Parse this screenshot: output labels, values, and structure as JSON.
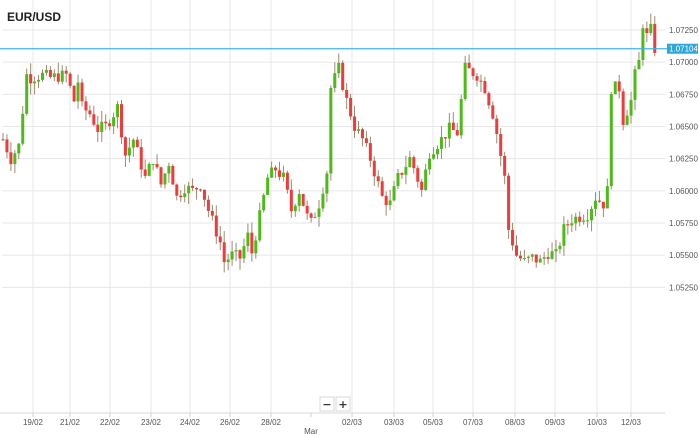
{
  "colors": {
    "up": "#4cbb17",
    "down": "#ef3b3b",
    "wick": "#9d8a6e",
    "grid": "#e7e7e7",
    "price_line": "#3eb4e6",
    "price_label_bg": "#2fa6d9"
  },
  "zoom": {
    "minus_label": "−",
    "plus_label": "+"
  },
  "chart_data": {
    "type": "candlestick",
    "title": "EUR/USD",
    "xlabel": "",
    "ylabel": "",
    "ylim": [
      1.0515,
      1.0745
    ],
    "y_ticks": [
      "1.07250",
      "1.07000",
      "1.06750",
      "1.06500",
      "1.06250",
      "1.06000",
      "1.05750",
      "1.05500",
      "1.05250"
    ],
    "x_ticks": [
      "19/02",
      "21/02",
      "22/02",
      "23/02",
      "24/02",
      "26/02",
      "28/02",
      "Mar",
      "02/03",
      "03/03",
      "05/03",
      "07/03",
      "08/03",
      "09/03",
      "10/03",
      "12/03"
    ],
    "last_price": "1.07104",
    "grid": true,
    "candle_interval": "4 hours",
    "path": [
      [
        0,
        1.064
      ],
      [
        2,
        1.0625
      ],
      [
        4,
        1.0635
      ],
      [
        6,
        1.069
      ],
      [
        7,
        1.0688
      ],
      [
        10,
        1.069
      ],
      [
        12,
        1.0688
      ],
      [
        16,
        1.069
      ],
      [
        18,
        1.067
      ],
      [
        19,
        1.0685
      ],
      [
        20,
        1.0665
      ],
      [
        22,
        1.066
      ],
      [
        24,
        1.0648
      ],
      [
        26,
        1.065
      ],
      [
        29,
        1.0665
      ],
      [
        31,
        1.0628
      ],
      [
        33,
        1.064
      ],
      [
        36,
        1.061
      ],
      [
        38,
        1.0625
      ],
      [
        40,
        1.0605
      ],
      [
        42,
        1.0622
      ],
      [
        44,
        1.0595
      ],
      [
        46,
        1.0603
      ],
      [
        48,
        1.06
      ],
      [
        50,
        1.0605
      ],
      [
        52,
        1.0585
      ],
      [
        55,
        1.056
      ],
      [
        56,
        1.0545
      ],
      [
        58,
        1.055
      ],
      [
        60,
        1.0548
      ],
      [
        62,
        1.0565
      ],
      [
        63,
        1.0552
      ],
      [
        65,
        1.058
      ],
      [
        67,
        1.061
      ],
      [
        69,
        1.0617
      ],
      [
        71,
        1.061
      ],
      [
        73,
        1.0585
      ],
      [
        75,
        1.06
      ],
      [
        77,
        1.058
      ],
      [
        78,
        1.0575
      ],
      [
        80,
        1.059
      ],
      [
        82,
        1.0615
      ],
      [
        83,
        1.068
      ],
      [
        85,
        1.0695
      ],
      [
        87,
        1.067
      ],
      [
        89,
        1.065
      ],
      [
        91,
        1.064
      ],
      [
        93,
        1.0625
      ],
      [
        94,
        1.0615
      ],
      [
        96,
        1.0595
      ],
      [
        98,
        1.059
      ],
      [
        100,
        1.061
      ],
      [
        103,
        1.0625
      ],
      [
        104,
        1.0618
      ],
      [
        106,
        1.06
      ],
      [
        108,
        1.063
      ],
      [
        111,
        1.064
      ],
      [
        113,
        1.0648
      ],
      [
        115,
        1.0645
      ],
      [
        117,
        1.0695
      ],
      [
        120,
        1.069
      ],
      [
        122,
        1.068
      ],
      [
        124,
        1.066
      ],
      [
        125,
        1.0645
      ],
      [
        127,
        1.061
      ],
      [
        128,
        1.057
      ],
      [
        130,
        1.055
      ],
      [
        132,
        1.0545
      ],
      [
        134,
        1.0548
      ],
      [
        136,
        1.0545
      ],
      [
        138,
        1.0552
      ],
      [
        140,
        1.055
      ],
      [
        142,
        1.057
      ],
      [
        144,
        1.0578
      ],
      [
        146,
        1.058
      ],
      [
        148,
        1.0582
      ],
      [
        150,
        1.0595
      ],
      [
        152,
        1.059
      ],
      [
        153,
        1.06
      ],
      [
        154,
        1.068
      ],
      [
        156,
        1.068
      ],
      [
        157,
        1.0655
      ],
      [
        159,
        1.067
      ],
      [
        160,
        1.069
      ],
      [
        161,
        1.07
      ],
      [
        162,
        1.073
      ],
      [
        163,
        1.072
      ],
      [
        164,
        1.0725
      ],
      [
        165,
        1.07104
      ]
    ]
  }
}
